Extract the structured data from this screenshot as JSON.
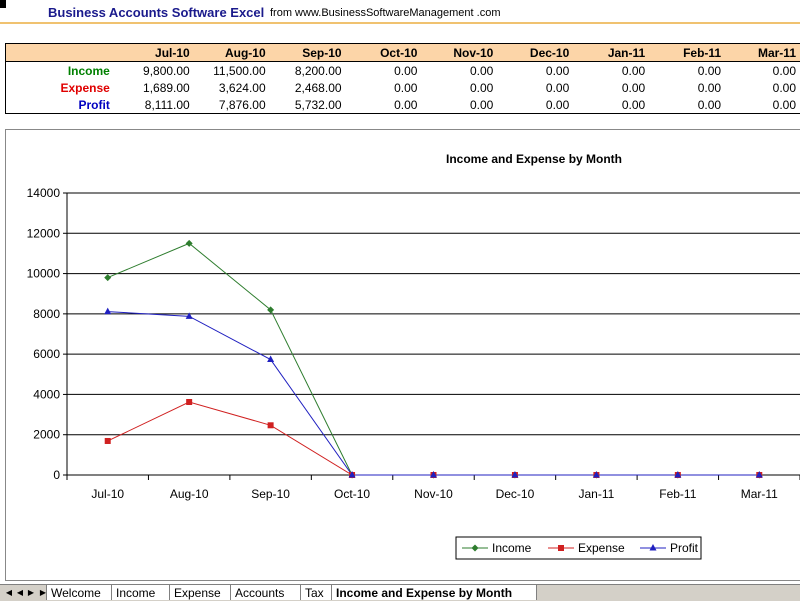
{
  "header": {
    "title": "Business Accounts Software Excel",
    "subtitle": "from www.BusinessSoftwareManagement .com"
  },
  "table": {
    "months": [
      "Jul-10",
      "Aug-10",
      "Sep-10",
      "Oct-10",
      "Nov-10",
      "Dec-10",
      "Jan-11",
      "Feb-11",
      "Mar-11"
    ],
    "rows": [
      {
        "label": "Income",
        "color": "#008000",
        "values": [
          "9,800.00",
          "11,500.00",
          "8,200.00",
          "0.00",
          "0.00",
          "0.00",
          "0.00",
          "0.00",
          "0.00"
        ]
      },
      {
        "label": "Expense",
        "color": "#e00000",
        "values": [
          "1,689.00",
          "3,624.00",
          "2,468.00",
          "0.00",
          "0.00",
          "0.00",
          "0.00",
          "0.00",
          "0.00"
        ]
      },
      {
        "label": "Profit",
        "color": "#0000c0",
        "values": [
          "8,111.00",
          "7,876.00",
          "5,732.00",
          "0.00",
          "0.00",
          "0.00",
          "0.00",
          "0.00",
          "0.00"
        ]
      }
    ]
  },
  "chart_data": {
    "type": "line",
    "title": "Income and Expense by Month",
    "categories": [
      "Jul-10",
      "Aug-10",
      "Sep-10",
      "Oct-10",
      "Nov-10",
      "Dec-10",
      "Jan-11",
      "Feb-11",
      "Mar-11"
    ],
    "series": [
      {
        "name": "Income",
        "color": "#2e7d2e",
        "marker": "diamond",
        "values": [
          9800,
          11500,
          8200,
          0,
          0,
          0,
          0,
          0,
          0
        ]
      },
      {
        "name": "Expense",
        "color": "#d02020",
        "marker": "square",
        "values": [
          1689,
          3624,
          2468,
          0,
          0,
          0,
          0,
          0,
          0
        ]
      },
      {
        "name": "Profit",
        "color": "#2020c0",
        "marker": "triangle",
        "values": [
          8111,
          7876,
          5732,
          0,
          0,
          0,
          0,
          0,
          0
        ]
      }
    ],
    "ylim": [
      0,
      14000
    ],
    "yticks": [
      0,
      2000,
      4000,
      6000,
      8000,
      10000,
      12000,
      14000
    ],
    "grid": true,
    "legend": "bottom-right"
  },
  "tabs": {
    "nav_icons": [
      "first-sheet-icon",
      "prev-sheet-icon",
      "next-sheet-icon",
      "last-sheet-icon"
    ],
    "sheets": [
      "Welcome",
      "Income",
      "Expense",
      "Accounts",
      "Tax",
      "Income and Expense by Month"
    ],
    "active": "Income and Expense by Month"
  }
}
